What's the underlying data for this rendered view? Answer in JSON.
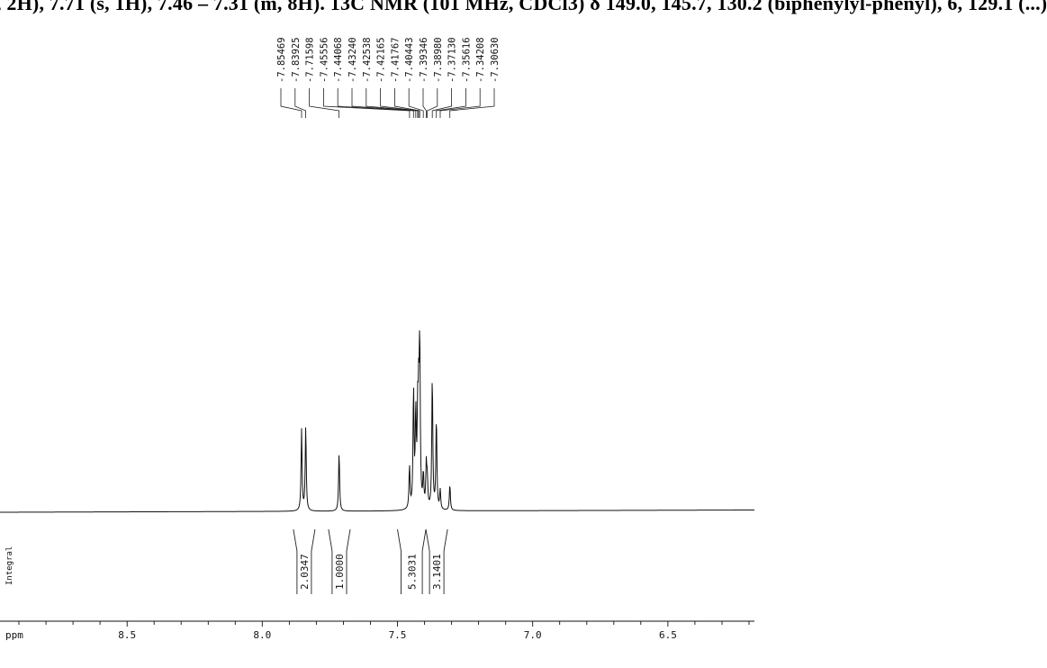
{
  "header_text": ", 2H), 7.71 (s, 1H), 7.46 – 7.31 (m, 8H). 13C NMR (101 MHz, CDCl3) δ 149.0, 145.7, 130.2 (biphenylyl-phenyl), 6, 129.1 (...)",
  "chart_data": {
    "type": "line",
    "title": "",
    "xlabel": "ppm",
    "ylabel": "",
    "x_axis_reversed": true,
    "xlim": [
      8.97,
      6.18
    ],
    "x_ticks": [
      8.5,
      8.0,
      7.5,
      7.0,
      6.5
    ],
    "x_tick_labels": [
      "8.5",
      "8.0",
      "7.5",
      "7.0",
      "6.5"
    ],
    "axis_label": "ppm",
    "peak_labels": [
      "7.85469",
      "7.83925",
      "7.71598",
      "7.45556",
      "7.44068",
      "7.43240",
      "7.42538",
      "7.42165",
      "7.41767",
      "7.40443",
      "7.39346",
      "7.38980",
      "7.37130",
      "7.35616",
      "7.34208",
      "7.30630"
    ],
    "peaks": [
      {
        "ppm": 7.8547,
        "height": 0.5
      },
      {
        "ppm": 7.8393,
        "height": 0.52
      },
      {
        "ppm": 7.716,
        "height": 0.36
      },
      {
        "ppm": 7.4556,
        "height": 0.26
      },
      {
        "ppm": 7.4407,
        "height": 0.72
      },
      {
        "ppm": 7.4324,
        "height": 0.56
      },
      {
        "ppm": 7.4254,
        "height": 0.5
      },
      {
        "ppm": 7.4217,
        "height": 0.55
      },
      {
        "ppm": 7.4177,
        "height": 0.97
      },
      {
        "ppm": 7.4044,
        "height": 0.2
      },
      {
        "ppm": 7.3935,
        "height": 0.26
      },
      {
        "ppm": 7.3898,
        "height": 0.16
      },
      {
        "ppm": 7.3713,
        "height": 0.82
      },
      {
        "ppm": 7.3562,
        "height": 0.56
      },
      {
        "ppm": 7.3421,
        "height": 0.12
      },
      {
        "ppm": 7.3063,
        "height": 0.16
      }
    ],
    "integral_label": "Integral",
    "integrals": [
      {
        "label": "2.0347",
        "from": 7.885,
        "to": 7.805
      },
      {
        "label": "1.0000",
        "from": 7.755,
        "to": 7.675
      },
      {
        "label": "5.3031",
        "from": 7.5,
        "to": 7.395
      },
      {
        "label": "3.1401",
        "from": 7.395,
        "to": 7.315
      }
    ],
    "grid": false,
    "legend": "none"
  }
}
